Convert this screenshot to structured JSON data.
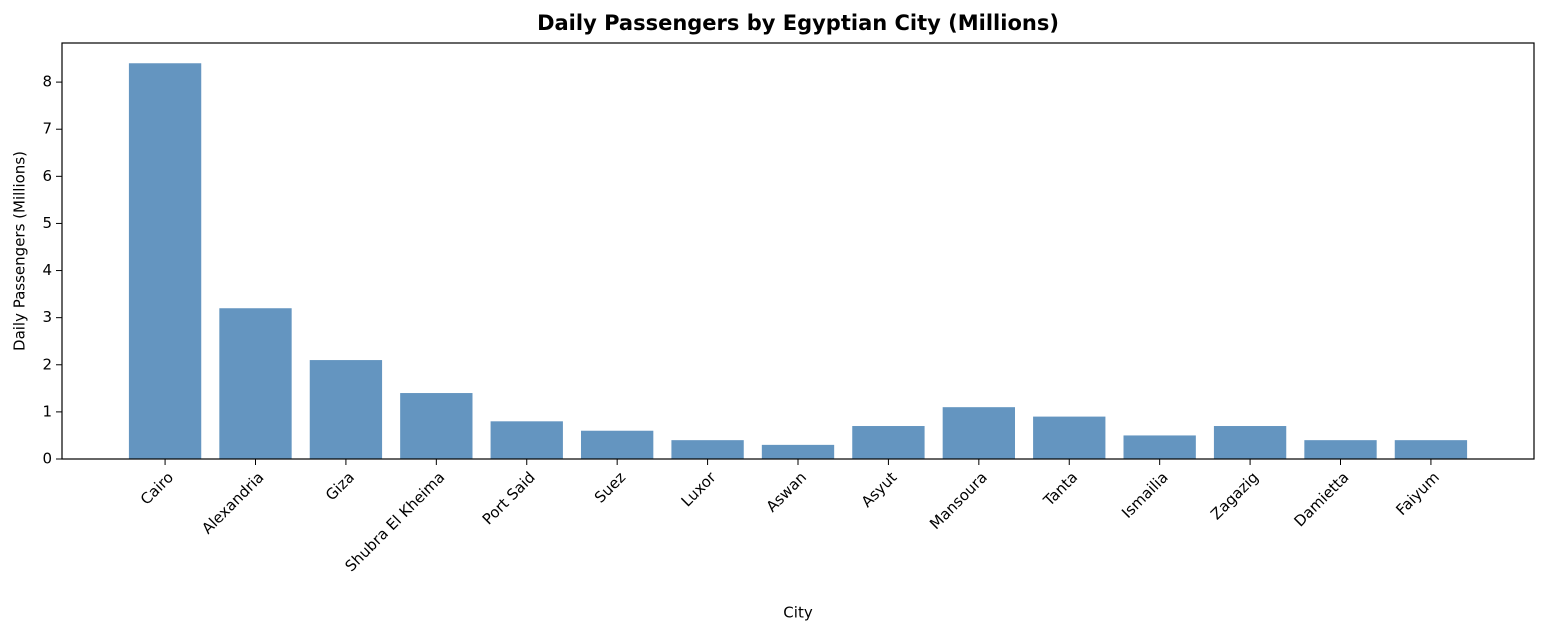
{
  "chart_data": {
    "type": "bar",
    "title": "Daily Passengers by Egyptian City (Millions)",
    "x_label": "City",
    "y_label": "Daily Passengers (Millions)",
    "categories": [
      "Cairo",
      "Alexandria",
      "Giza",
      "Shubra El Kheima",
      "Port Said",
      "Suez",
      "Luxor",
      "Aswan",
      "Asyut",
      "Mansoura",
      "Tanta",
      "Ismailia",
      "Zagazig",
      "Damietta",
      "Faiyum"
    ],
    "values": [
      8.4,
      3.2,
      2.1,
      1.4,
      0.8,
      0.6,
      0.4,
      0.3,
      0.7,
      1.1,
      0.9,
      0.5,
      0.7,
      0.4,
      0.4
    ],
    "color": "#6495c0",
    "ylim": [
      0,
      8.83
    ],
    "yticks": [
      0,
      1,
      2,
      3,
      4,
      5,
      6,
      7,
      8
    ],
    "grid": false
  }
}
